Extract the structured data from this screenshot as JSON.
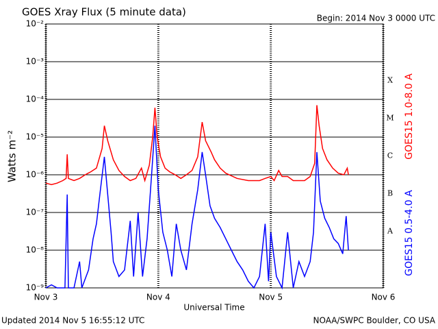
{
  "chart_data": {
    "type": "line",
    "title": "GOES Xray Flux (5 minute data)",
    "subtitle": "Begin:  2014 Nov 3 0000 UTC",
    "x_label": "Universal Time",
    "y_label": "Watts m⁻²",
    "footer_left": "Updated 2014 Nov  5 16:55:12 UTC",
    "footer_right": "NOAA/SWPC Boulder, CO USA",
    "flare_classes": [
      "X",
      "M",
      "C",
      "B",
      "A"
    ],
    "log_y": true,
    "grid": true,
    "xlim": [
      0,
      3
    ],
    "xticks": [
      {
        "value": 0,
        "label": "Nov 3"
      },
      {
        "value": 1,
        "label": "Nov 4"
      },
      {
        "value": 2,
        "label": "Nov 5"
      },
      {
        "value": 3,
        "label": "Nov 6"
      }
    ],
    "ylim": [
      1e-09,
      0.01
    ],
    "yticks": [
      {
        "value": 1e-09,
        "label": "10⁻⁹"
      },
      {
        "value": 1e-08,
        "label": "10⁻⁸"
      },
      {
        "value": 1e-07,
        "label": "10⁻⁷"
      },
      {
        "value": 1e-06,
        "label": "10⁻⁶"
      },
      {
        "value": 1e-05,
        "label": "10⁻⁵"
      },
      {
        "value": 0.0001,
        "label": "10⁻⁴"
      },
      {
        "value": 0.001,
        "label": "10⁻³"
      },
      {
        "value": 0.01,
        "label": "10⁻²"
      }
    ],
    "series": [
      {
        "name": "GOES15 1.0-8.0 A",
        "color": "#ff0000",
        "x": [
          0,
          0.05,
          0.1,
          0.15,
          0.18,
          0.19,
          0.2,
          0.25,
          0.3,
          0.35,
          0.4,
          0.45,
          0.5,
          0.52,
          0.55,
          0.6,
          0.65,
          0.7,
          0.75,
          0.8,
          0.85,
          0.88,
          0.92,
          0.95,
          0.97,
          0.99,
          1.02,
          1.06,
          1.1,
          1.15,
          1.2,
          1.25,
          1.3,
          1.35,
          1.39,
          1.42,
          1.47,
          1.5,
          1.55,
          1.6,
          1.7,
          1.8,
          1.9,
          1.95,
          2.0,
          2.03,
          2.07,
          2.1,
          2.15,
          2.2,
          2.3,
          2.35,
          2.39,
          2.41,
          2.43,
          2.46,
          2.5,
          2.55,
          2.6,
          2.65,
          2.68,
          2.69
        ],
        "values": [
          6e-07,
          5.5e-07,
          6e-07,
          7e-07,
          8e-07,
          3.5e-06,
          8e-07,
          7e-07,
          8e-07,
          1e-06,
          1.2e-06,
          1.5e-06,
          5e-06,
          2e-05,
          8e-06,
          2.5e-06,
          1.3e-06,
          9e-07,
          7e-07,
          8e-07,
          1.5e-06,
          7e-07,
          1.8e-06,
          1e-05,
          6e-05,
          1e-05,
          3e-06,
          1.5e-06,
          1.2e-06,
          1e-06,
          8e-07,
          1e-06,
          1.3e-06,
          3e-06,
          2.5e-05,
          8e-06,
          4e-06,
          2.5e-06,
          1.5e-06,
          1.1e-06,
          8e-07,
          7e-07,
          7e-07,
          8e-07,
          9e-07,
          7e-07,
          1.3e-06,
          9e-07,
          9e-07,
          7e-07,
          7e-07,
          9e-07,
          2e-06,
          7e-05,
          2e-05,
          5e-06,
          2.5e-06,
          1.5e-06,
          1.1e-06,
          1e-06,
          1.5e-06,
          1e-06
        ]
      },
      {
        "name": "GOES15 0.5-4.0 A",
        "color": "#0000ff",
        "x": [
          0,
          0.05,
          0.1,
          0.17,
          0.19,
          0.2,
          0.25,
          0.3,
          0.32,
          0.38,
          0.42,
          0.45,
          0.48,
          0.52,
          0.55,
          0.58,
          0.6,
          0.65,
          0.7,
          0.75,
          0.78,
          0.82,
          0.86,
          0.9,
          0.94,
          0.97,
          1.0,
          1.04,
          1.08,
          1.12,
          1.16,
          1.2,
          1.25,
          1.3,
          1.35,
          1.39,
          1.42,
          1.46,
          1.5,
          1.55,
          1.6,
          1.65,
          1.7,
          1.75,
          1.8,
          1.85,
          1.9,
          1.95,
          1.98,
          2.0,
          2.05,
          2.1,
          2.15,
          2.2,
          2.25,
          2.3,
          2.35,
          2.38,
          2.41,
          2.44,
          2.48,
          2.52,
          2.56,
          2.6,
          2.64,
          2.67,
          2.69
        ],
        "values": [
          1e-09,
          1.2e-09,
          1e-09,
          1e-09,
          3e-07,
          1e-09,
          1e-09,
          5e-09,
          1e-09,
          3e-09,
          2e-08,
          5e-08,
          3e-07,
          3e-06,
          3e-07,
          3e-08,
          5e-09,
          2e-09,
          3e-09,
          6e-08,
          2e-09,
          1e-07,
          2e-09,
          2e-08,
          1e-06,
          2e-05,
          4e-07,
          3e-08,
          1e-08,
          2e-09,
          5e-08,
          1e-08,
          3e-09,
          5e-08,
          4e-07,
          4e-06,
          1e-06,
          1.5e-07,
          7e-08,
          4e-08,
          2e-08,
          1e-08,
          5e-09,
          3e-09,
          1.5e-09,
          1e-09,
          2e-09,
          5e-08,
          1.5e-09,
          3e-08,
          2e-09,
          1e-09,
          3e-08,
          1e-09,
          5e-09,
          2e-09,
          5e-09,
          3e-08,
          4e-06,
          2e-07,
          7e-08,
          4e-08,
          2e-08,
          1.5e-08,
          8e-09,
          8e-08,
          1e-08
        ]
      }
    ]
  }
}
